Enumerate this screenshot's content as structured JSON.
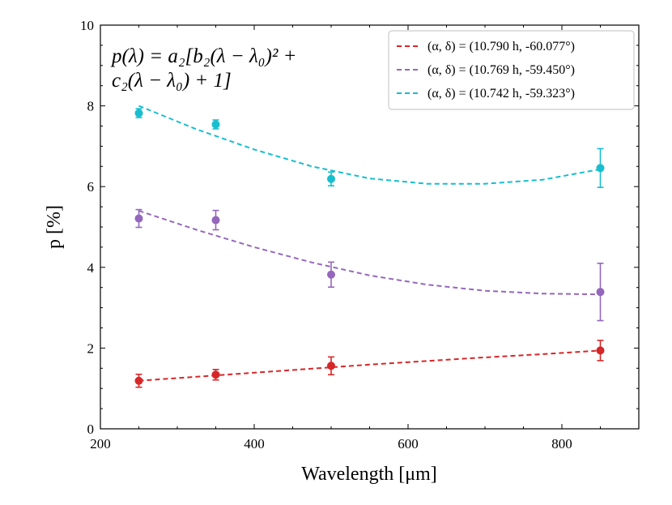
{
  "chart_data": {
    "type": "scatter",
    "xlabel": "Wavelength [μm]",
    "ylabel": "p [%]",
    "xlim": [
      200,
      900
    ],
    "ylim": [
      0,
      10
    ],
    "xticks": [
      200,
      400,
      600,
      800
    ],
    "yticks": [
      0,
      2,
      4,
      6,
      8,
      10
    ],
    "grid": false,
    "legend_position": "top-right",
    "annotation": {
      "line1": "p(λ) = a₂[b₂(λ − λ₀)² +",
      "line2": "c₂(λ − λ₀) + 1]"
    },
    "series": [
      {
        "name": "(α, δ) = (10.790 h, -60.077°)",
        "color": "#d62728",
        "x": [
          250,
          350,
          500,
          850
        ],
        "y": [
          1.19,
          1.34,
          1.56,
          1.94
        ],
        "err": [
          0.16,
          0.13,
          0.22,
          0.25
        ],
        "fit_x": [
          250,
          325,
          400,
          475,
          550,
          625,
          700,
          775,
          850
        ],
        "fit_y": [
          1.19,
          1.29,
          1.39,
          1.49,
          1.59,
          1.68,
          1.77,
          1.85,
          1.94
        ]
      },
      {
        "name": "(α, δ) = (10.769 h, -59.450°)",
        "color": "#9467bd",
        "x": [
          250,
          350,
          500,
          850
        ],
        "y": [
          5.21,
          5.17,
          3.82,
          3.39
        ],
        "err": [
          0.22,
          0.24,
          0.31,
          0.71
        ],
        "fit_x": [
          250,
          325,
          400,
          475,
          550,
          625,
          700,
          775,
          850
        ],
        "fit_y": [
          5.4,
          4.93,
          4.5,
          4.12,
          3.8,
          3.57,
          3.42,
          3.35,
          3.33
        ]
      },
      {
        "name": "(α, δ) = (10.742 h, -59.323°)",
        "color": "#17becf",
        "x": [
          250,
          350,
          500,
          850
        ],
        "y": [
          7.82,
          7.54,
          6.19,
          6.46
        ],
        "err": [
          0.11,
          0.11,
          0.17,
          0.48
        ],
        "fit_x": [
          250,
          325,
          400,
          475,
          550,
          625,
          700,
          775,
          850
        ],
        "fit_y": [
          8.0,
          7.42,
          6.92,
          6.5,
          6.2,
          6.07,
          6.07,
          6.17,
          6.43
        ]
      }
    ]
  }
}
